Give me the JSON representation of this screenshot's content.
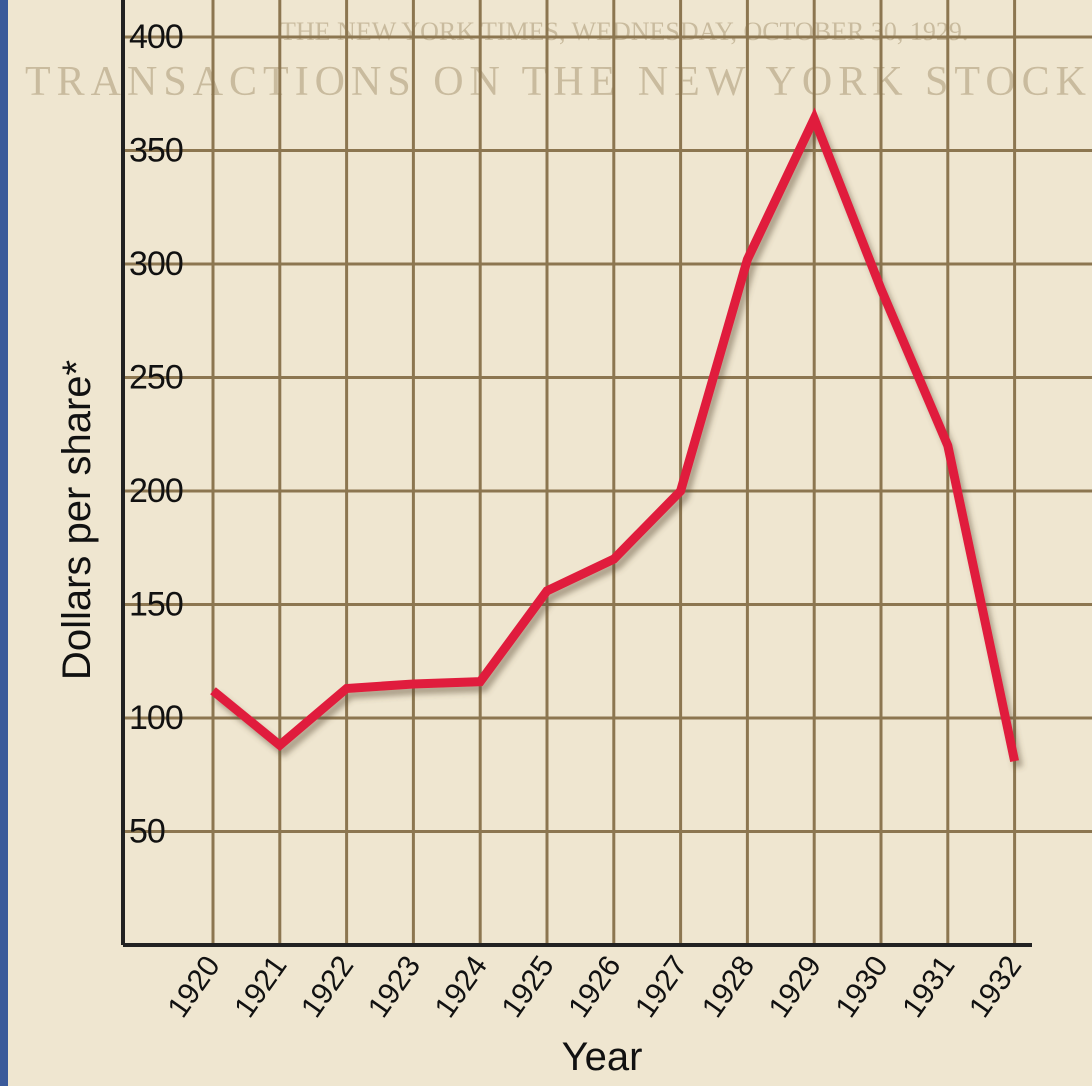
{
  "chart_data": {
    "type": "line",
    "annotations": [
      "THE NEW YORK TIMES, WEDNESDAY, OCTOBER 30, 1929.",
      "TRANSACTIONS ON THE NEW YORK STOCK EX"
    ],
    "y_label": "Dollars per share*",
    "x_label": "Year",
    "categories": [
      "1920",
      "1921",
      "1922",
      "1923",
      "1924",
      "1925",
      "1926",
      "1927",
      "1928",
      "1929",
      "1930",
      "1931",
      "1932"
    ],
    "values": [
      112,
      88,
      113,
      115,
      116,
      156,
      170,
      200,
      302,
      364,
      289,
      220,
      81
    ],
    "color": "#e01e3c",
    "ylim": [
      0,
      400
    ],
    "yticks": [
      50,
      100,
      150,
      200,
      250,
      300,
      350,
      400
    ],
    "grid": true
  }
}
